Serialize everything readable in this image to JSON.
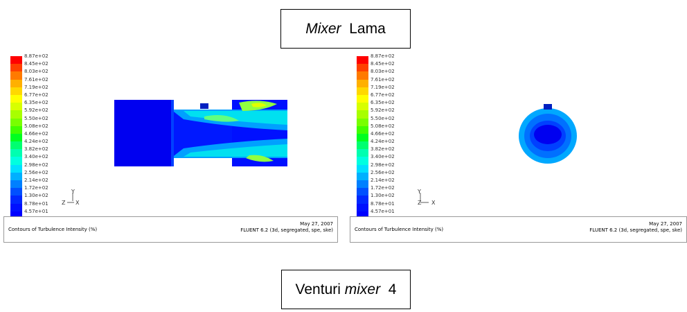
{
  "titles": {
    "top": {
      "italic": "Mixer",
      "plain": "Lama"
    },
    "bottom": {
      "plain": "Venturi",
      "italic": "mixer",
      "suffix": "4"
    }
  },
  "legend": {
    "labels": [
      "8.87e+02",
      "8.45e+02",
      "8.03e+02",
      "7.61e+02",
      "7.19e+02",
      "6.77e+02",
      "6.35e+02",
      "5.92e+02",
      "5.50e+02",
      "5.08e+02",
      "4.66e+02",
      "4.24e+02",
      "3.82e+02",
      "3.40e+02",
      "2.98e+02",
      "2.56e+02",
      "2.14e+02",
      "1.72e+02",
      "1.30e+02",
      "8.78e+01",
      "4.57e+01"
    ],
    "colors": [
      "#ff0000",
      "#ff4000",
      "#ff7a00",
      "#ffb000",
      "#ffd800",
      "#ffff00",
      "#d8ff00",
      "#a8ff00",
      "#78ff00",
      "#40ff00",
      "#00ff20",
      "#00ff70",
      "#00ffb0",
      "#00ffe0",
      "#00e0ff",
      "#00b0ff",
      "#0080ff",
      "#0050ff",
      "#0028ff",
      "#0010ff",
      "#0000ff"
    ]
  },
  "panels": {
    "left": {
      "caption": "Contours of Turbulence Intensity (%)",
      "date": "May 27, 2007",
      "solver": "FLUENT 6.2 (3d, segregated, spe, ske)",
      "axis": {
        "y": "Y",
        "z": "Z",
        "x": "X"
      }
    },
    "right": {
      "caption": "Contours of Turbulence Intensity (%)",
      "date": "May 27, 2007",
      "solver": "FLUENT 6.2 (3d, segregated, spe, ske)",
      "axis": {
        "y": "Y",
        "z": "Z",
        "x": "X"
      }
    }
  }
}
